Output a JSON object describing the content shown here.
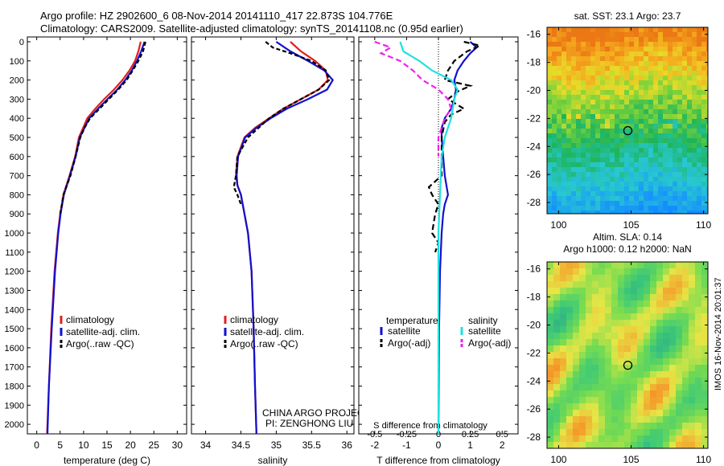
{
  "header": {
    "title_line1": "Argo profile: HZ 2902600_6 08-Nov-2014 20141110_417 22.873S 104.776E",
    "title_line2": "Climatology: CARS2009. Satellite-adjusted climatology: synTS_20141108.nc (0.95d earlier)"
  },
  "side_stamp": "IMOS 16-Nov-2014 20:01:37",
  "colors": {
    "climatology": "#e02020",
    "satellite": "#1010d0",
    "argo": "#000000",
    "sal_satellite": "#20e0e0",
    "sal_argo": "#f020f0"
  },
  "depth_ticks": [
    0,
    100,
    200,
    300,
    400,
    500,
    600,
    700,
    800,
    900,
    1000,
    1100,
    1200,
    1300,
    1400,
    1500,
    1600,
    1700,
    1800,
    1900,
    2000
  ],
  "chart_data": [
    {
      "type": "line",
      "id": "temperature",
      "xlabel": "temperature (deg C)",
      "xlim": [
        -2,
        32
      ],
      "ylim": [
        0,
        2050
      ],
      "xticks": [
        0,
        5,
        10,
        15,
        20,
        25,
        30
      ],
      "legend": [
        "climatology",
        "satellite-adj. clim.",
        "Argo(..raw -QC)"
      ],
      "series": [
        {
          "name": "climatology",
          "depth": [
            0,
            50,
            100,
            150,
            200,
            250,
            300,
            350,
            400,
            500,
            600,
            700,
            800,
            900,
            1000,
            1200,
            1500,
            1800,
            2050
          ],
          "values": [
            22.2,
            21.7,
            21.0,
            19.8,
            18.3,
            16.5,
            14.4,
            12.5,
            10.8,
            9.0,
            8.2,
            7.0,
            5.7,
            5.0,
            4.5,
            3.8,
            3.1,
            2.6,
            2.2
          ]
        },
        {
          "name": "satellite-adj. clim.",
          "depth": [
            0,
            50,
            100,
            150,
            200,
            250,
            300,
            350,
            400,
            500,
            600,
            700,
            800,
            900,
            1000,
            1200,
            1500,
            1800,
            2050
          ],
          "values": [
            23.0,
            22.3,
            21.4,
            20.3,
            18.9,
            17.2,
            15.1,
            13.1,
            11.2,
            9.2,
            8.3,
            7.1,
            5.8,
            5.1,
            4.6,
            3.9,
            3.2,
            2.6,
            2.3
          ]
        },
        {
          "name": "Argo(..raw -QC)",
          "depth": [
            0,
            50,
            100,
            150,
            200,
            250,
            300,
            350,
            400,
            450,
            500,
            600,
            700,
            800,
            850,
            900
          ],
          "values": [
            23.2,
            22.7,
            21.7,
            20.5,
            19.2,
            17.4,
            15.4,
            13.4,
            11.4,
            10.2,
            9.3,
            8.3,
            7.2,
            5.7,
            5.4,
            5.0
          ]
        }
      ]
    },
    {
      "type": "line",
      "id": "salinity",
      "xlabel": "salinity",
      "xlim": [
        33.8,
        36.1
      ],
      "ylim": [
        0,
        2050
      ],
      "xticks": [
        34,
        34.5,
        35,
        35.5,
        36
      ],
      "legend": [
        "climatology",
        "satellite-adj. clim.",
        "Argo(..raw -QC)"
      ],
      "annotations": [
        "CHINA ARGO PROJECT",
        "PI: ZENGHONG LIU"
      ],
      "series": [
        {
          "name": "climatology",
          "depth": [
            0,
            50,
            100,
            150,
            200,
            250,
            300,
            350,
            400,
            450,
            500,
            600,
            700,
            750,
            800,
            900,
            1000,
            1200,
            1500,
            1800,
            2050
          ],
          "values": [
            35.2,
            35.35,
            35.55,
            35.7,
            35.73,
            35.6,
            35.35,
            35.1,
            34.9,
            34.7,
            34.55,
            34.45,
            34.43,
            34.45,
            34.5,
            34.55,
            34.6,
            34.65,
            34.68,
            34.7,
            34.72
          ]
        },
        {
          "name": "satellite-adj. clim.",
          "depth": [
            0,
            50,
            100,
            150,
            200,
            250,
            300,
            350,
            400,
            450,
            500,
            600,
            700,
            750,
            800,
            900,
            1000,
            1200,
            1500,
            1800,
            2050
          ],
          "values": [
            35.0,
            35.2,
            35.45,
            35.68,
            35.8,
            35.72,
            35.45,
            35.15,
            34.92,
            34.72,
            34.56,
            34.46,
            34.44,
            34.45,
            34.5,
            34.55,
            34.6,
            34.65,
            34.68,
            34.7,
            34.72
          ]
        },
        {
          "name": "Argo(..raw -QC)",
          "depth": [
            0,
            30,
            60,
            100,
            150,
            200,
            250,
            300,
            350,
            400,
            500,
            600,
            700,
            760,
            800,
            850
          ],
          "values": [
            34.85,
            34.95,
            35.2,
            35.5,
            35.7,
            35.75,
            35.6,
            35.35,
            35.1,
            34.9,
            34.6,
            34.45,
            34.43,
            34.4,
            34.45,
            34.5
          ]
        }
      ]
    },
    {
      "type": "line",
      "id": "differences",
      "xlabel": "T difference from climatology",
      "xlabel_top": "S difference from climatology",
      "xlim": [
        -2.5,
        2.5
      ],
      "ylim": [
        0,
        2050
      ],
      "xticks": [
        -2,
        -1,
        0,
        1,
        2
      ],
      "sticks_labels": [
        "-0.5",
        "-0.25",
        "0",
        "0.25",
        "0.5"
      ],
      "legend_titles": [
        "temperature",
        "salinity"
      ],
      "legend": [
        "satellite",
        "Argo(-adj)",
        "satellite",
        "Argo(-adj)"
      ],
      "series": [
        {
          "name": "temperature satellite",
          "depth": [
            0,
            30,
            60,
            100,
            150,
            200,
            250,
            300,
            350,
            400,
            450,
            500,
            600,
            700,
            750,
            800,
            850,
            900,
            1000,
            1200,
            1500,
            1800,
            2050
          ],
          "values": [
            1.0,
            1.2,
            1.0,
            0.8,
            0.6,
            0.5,
            0.55,
            0.5,
            0.4,
            0.2,
            0.1,
            0.1,
            0.15,
            0.2,
            0.25,
            0.3,
            0.2,
            0.15,
            0.1,
            0.05,
            0.02,
            0.01,
            0.0
          ]
        },
        {
          "name": "temperature Argo(-adj)",
          "depth": [
            0,
            20,
            50,
            100,
            150,
            200,
            230,
            260,
            300,
            350,
            380,
            420,
            500,
            700,
            760,
            800,
            850,
            900,
            1000,
            1050,
            1100
          ],
          "values": [
            0.8,
            1.3,
            0.9,
            0.5,
            0.3,
            0.2,
            1.0,
            0.6,
            0.3,
            0.8,
            0.4,
            0.2,
            0.1,
            0.1,
            -0.3,
            -0.2,
            0.0,
            -0.1,
            -0.2,
            0.0,
            -0.1
          ]
        },
        {
          "name": "salinity satellite",
          "depth": [
            0,
            50,
            100,
            150,
            200,
            250,
            300,
            400,
            500,
            600,
            800,
            1000,
            1500,
            2050
          ],
          "values": [
            -1.2,
            -1.1,
            -0.6,
            -0.2,
            0.4,
            0.6,
            0.5,
            0.4,
            0.2,
            0.1,
            0.05,
            0.0,
            0.0,
            0.0
          ]
        },
        {
          "name": "salinity Argo(-adj)",
          "depth": [
            0,
            30,
            60,
            100,
            150,
            200,
            250,
            300,
            350,
            400,
            450,
            500,
            600
          ],
          "values": [
            -2.0,
            -1.5,
            -1.8,
            -1.2,
            -0.8,
            -0.5,
            0.0,
            0.3,
            0.4,
            0.2,
            0.1,
            0.0,
            0.0
          ]
        }
      ]
    },
    {
      "type": "heatmap",
      "id": "sst_map",
      "title": "sat. SST: 23.1  Argo: 23.7",
      "xlim": [
        99.2,
        110.3
      ],
      "ylim": [
        -28.8,
        -15.5
      ],
      "xticks": [
        100,
        105,
        110
      ],
      "yticks": [
        -16,
        -18,
        -20,
        -22,
        -24,
        -26,
        -28
      ],
      "marker": {
        "lon": 104.776,
        "lat": -22.873
      }
    },
    {
      "type": "heatmap",
      "id": "sla_map",
      "title_line1": "Altim. SLA: 0.14",
      "title_line2": "Argo h1000: 0.12 h2000: NaN",
      "xlim": [
        99.2,
        110.3
      ],
      "ylim": [
        -28.8,
        -15.5
      ],
      "xticks": [
        100,
        105,
        110
      ],
      "yticks": [
        -16,
        -18,
        -20,
        -22,
        -24,
        -26,
        -28
      ],
      "marker": {
        "lon": 104.776,
        "lat": -22.873
      }
    }
  ]
}
